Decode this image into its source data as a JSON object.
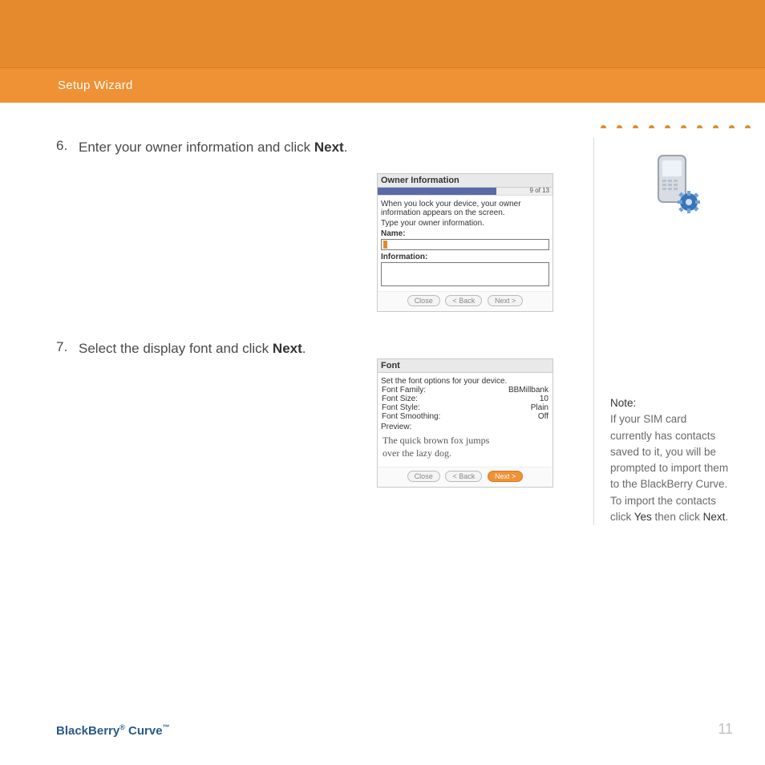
{
  "header": {
    "section_title": "Setup Wizard"
  },
  "dots": {
    "color": "#e68a2e",
    "count": 10
  },
  "steps": [
    {
      "num": "6.",
      "text_pre": "Enter your owner information and click ",
      "bold": "Next",
      "text_post": "."
    },
    {
      "num": "7.",
      "text_pre": "Select the display font and click ",
      "bold": "Next",
      "text_post": "."
    }
  ],
  "shot_owner": {
    "title": "Owner Information",
    "progress_pct": 68,
    "progress_label": "9 of 13",
    "line1": "When you lock your device, your owner information appears on the screen.",
    "line2": "Type your owner information.",
    "name_label": "Name:",
    "info_label": "Information:",
    "btn_close": "Close",
    "btn_back": "< Back",
    "btn_next": "Next >"
  },
  "shot_font": {
    "title": "Font",
    "instr": "Set the font options for your device.",
    "rows": [
      {
        "k": "Font Family:",
        "v": "BBMillbank"
      },
      {
        "k": "Font Size:",
        "v": "10"
      },
      {
        "k": "Font Style:",
        "v": "Plain"
      },
      {
        "k": "Font Smoothing:",
        "v": "Off"
      }
    ],
    "preview_label": "Preview:",
    "preview_l1": "The quick brown fox jumps",
    "preview_l2": "over the lazy dog.",
    "btn_close": "Close",
    "btn_back": "< Back",
    "btn_next": "Next >"
  },
  "note": {
    "label": "Note:",
    "body_pre": "If your SIM card currently has contacts saved to it, you will be prompted to import them to the BlackBerry Curve. To import the contacts click ",
    "yes": "Yes",
    "mid": " then click ",
    "next": "Next",
    "post": "."
  },
  "footer": {
    "brand_a": "BlackBerry",
    "reg": "®",
    "brand_b": " Curve",
    "tm": "™",
    "page": "11"
  },
  "colors": {
    "orange_dark": "#e68a2e",
    "orange": "#ef9135",
    "brand_blue": "#2a5a8a"
  }
}
